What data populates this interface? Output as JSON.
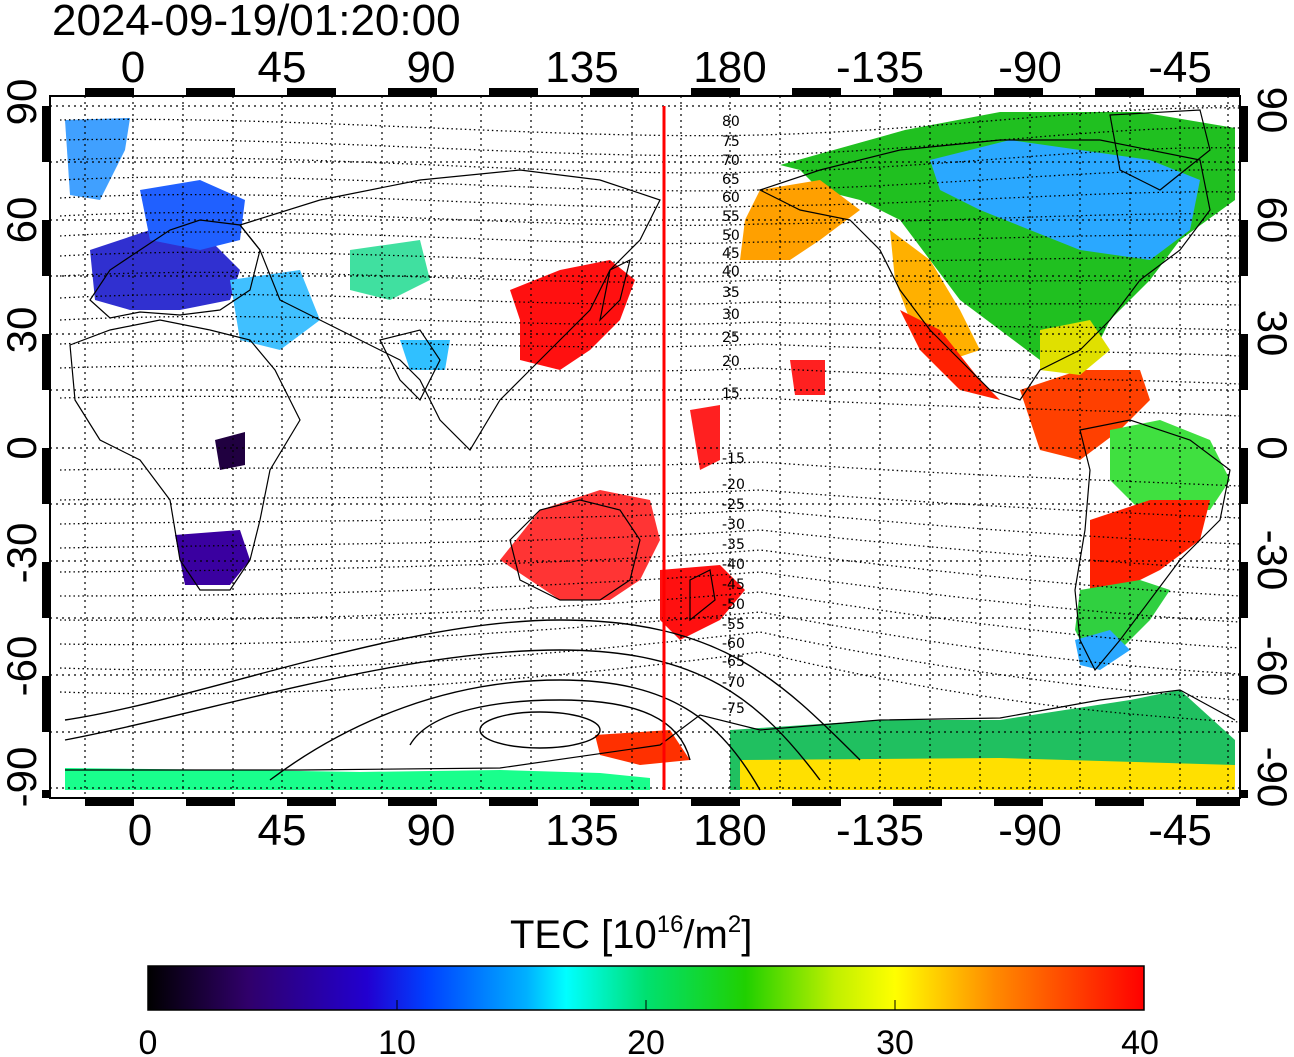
{
  "header": {
    "timestamp": "2024-09-19/01:20:00"
  },
  "map": {
    "x_ticks_top": [
      "0",
      "45",
      "90",
      "135",
      "180",
      "-135",
      "-90",
      "-45"
    ],
    "x_ticks_bottom": [
      "0",
      "45",
      "90",
      "135",
      "180",
      "-135",
      "-90",
      "-45"
    ],
    "y_ticks_left": [
      "90",
      "60",
      "30",
      "0",
      "-30",
      "-60",
      "-90"
    ],
    "y_ticks_right": [
      "90",
      "60",
      "30",
      "0",
      "-30",
      "-60",
      "-90"
    ],
    "lon_range": [
      -22,
      338
    ],
    "lat_range": [
      -92,
      92
    ],
    "terminator_lon": 160,
    "terminator_color": "#ff0000",
    "contour_labels": [
      "80",
      "75",
      "70",
      "65",
      "60",
      "55",
      "50",
      "45",
      "40",
      "35",
      "30",
      "25",
      "20",
      "15",
      "-15",
      "-20",
      "-25",
      "-30",
      "-35",
      "-40",
      "-45",
      "-50",
      "-55",
      "-60",
      "-65",
      "-70",
      "-75"
    ]
  },
  "colorbar": {
    "title_main": "TEC  [10",
    "title_sup1": "16",
    "title_mid": "/m",
    "title_sup2": "2",
    "title_end": "]",
    "ticks": [
      "0",
      "10",
      "20",
      "30",
      "40"
    ],
    "range": [
      0,
      40
    ],
    "colors": [
      "#000000",
      "#400080",
      "#0000ff",
      "#00ffff",
      "#00ff00",
      "#ffff00",
      "#ff8000",
      "#ff0000"
    ]
  }
}
